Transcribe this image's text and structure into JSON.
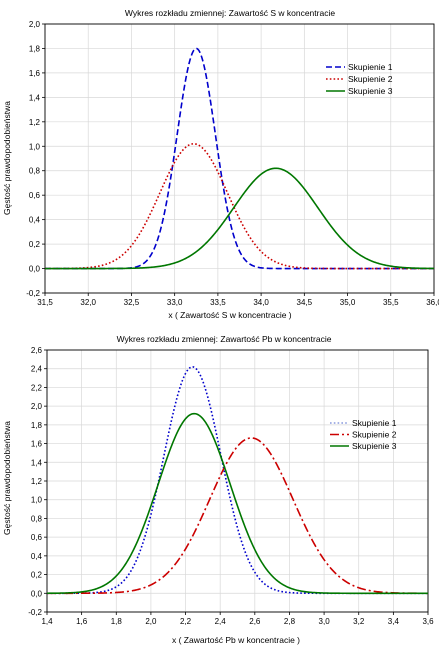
{
  "chart_data": [
    {
      "type": "line",
      "title": "Wykres rozkładu zmiennej: Zawartość S w koncentracie",
      "xlabel": "x ( Zawartość S w koncentracie )",
      "ylabel": "Gęstość prawdopodobieństwa",
      "xlim": [
        31.5,
        36.0
      ],
      "ylim": [
        -0.2,
        2.0
      ],
      "xticks": [
        "31,5",
        "32,0",
        "32,5",
        "33,0",
        "33,5",
        "34,0",
        "34,5",
        "35,0",
        "35,5",
        "36,0"
      ],
      "yticks": [
        "-0,2",
        "0,0",
        "0,2",
        "0,4",
        "0,6",
        "0,8",
        "1,0",
        "1,2",
        "1,4",
        "1,6",
        "1,8",
        "2,0"
      ],
      "grid": true,
      "legend_position": "top-right",
      "series": [
        {
          "name": "Skupienie 1",
          "color": "#0000cc",
          "style": "dashed",
          "distribution": "normal",
          "mean": 33.25,
          "sd": 0.222,
          "peak": 1.8
        },
        {
          "name": "Skupienie 2",
          "color": "#cc0000",
          "style": "dotted",
          "distribution": "normal",
          "mean": 33.22,
          "sd": 0.391,
          "peak": 1.02
        },
        {
          "name": "Skupienie 3",
          "color": "#007700",
          "style": "solid",
          "distribution": "normal",
          "mean": 34.17,
          "sd": 0.487,
          "peak": 0.82
        }
      ]
    },
    {
      "type": "line",
      "title": "Wykres rozkładu zmiennej: Zawartość Pb w koncentracie",
      "xlabel": "x ( Zawartość Pb w koncentracie )",
      "ylabel": "Gęstość prawdopodobieństwa",
      "xlim": [
        1.4,
        3.6
      ],
      "ylim": [
        -0.2,
        2.6
      ],
      "xticks": [
        "1,4",
        "1,6",
        "1,8",
        "2,0",
        "2,2",
        "2,4",
        "2,6",
        "2,8",
        "3,0",
        "3,2",
        "3,4",
        "3,6"
      ],
      "yticks": [
        "-0,2",
        "0,0",
        "0,2",
        "0,4",
        "0,6",
        "0,8",
        "1,0",
        "1,2",
        "1,4",
        "1,6",
        "1,8",
        "2,0",
        "2,2",
        "2,4",
        "2,6"
      ],
      "grid": true,
      "legend_position": "right",
      "series": [
        {
          "name": "Skupienie 1",
          "color": "#0000cc",
          "legend_color": "#8899dd",
          "style": "dotted",
          "distribution": "normal",
          "mean": 2.24,
          "sd": 0.165,
          "peak": 2.42
        },
        {
          "name": "Skupienie 2",
          "color": "#cc0000",
          "style": "dashdot",
          "distribution": "normal",
          "mean": 2.58,
          "sd": 0.24,
          "peak": 1.66
        },
        {
          "name": "Skupienie 3",
          "color": "#007700",
          "style": "solid",
          "distribution": "normal",
          "mean": 2.25,
          "sd": 0.208,
          "peak": 1.92
        }
      ]
    }
  ]
}
